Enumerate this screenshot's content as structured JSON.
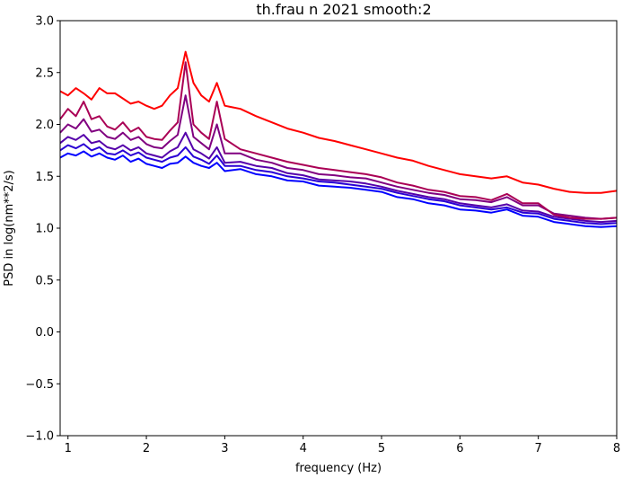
{
  "chart_data": {
    "type": "line",
    "title": "th.frau n 2021 smooth:2",
    "xlabel": "frequency (Hz)",
    "ylabel": "PSD in log(nm**2/s)",
    "xlim": [
      0.9,
      8
    ],
    "ylim": [
      -1.0,
      3.0
    ],
    "xticks": [
      1,
      2,
      3,
      4,
      5,
      6,
      7,
      8
    ],
    "xtick_labels": [
      "1",
      "2",
      "3",
      "4",
      "5",
      "6",
      "7",
      "8"
    ],
    "yticks": [
      -1.0,
      -0.5,
      0.0,
      0.5,
      1.0,
      1.5,
      2.0,
      2.5,
      3.0
    ],
    "ytick_labels": [
      "−1.0",
      "−0.5",
      "0.0",
      "0.5",
      "1.0",
      "1.5",
      "2.0",
      "2.5",
      "3.0"
    ],
    "grid": false,
    "legend": "none",
    "series": [
      {
        "color": "#0000ff",
        "x": [
          0.9,
          1.0,
          1.1,
          1.2,
          1.3,
          1.4,
          1.5,
          1.6,
          1.7,
          1.8,
          1.9,
          2.0,
          2.1,
          2.2,
          2.3,
          2.4,
          2.5,
          2.6,
          2.7,
          2.8,
          2.9,
          3.0,
          3.2,
          3.4,
          3.6,
          3.8,
          4.0,
          4.2,
          4.4,
          4.6,
          4.8,
          5.0,
          5.2,
          5.4,
          5.6,
          5.8,
          6.0,
          6.2,
          6.4,
          6.6,
          6.8,
          7.0,
          7.2,
          7.4,
          7.6,
          7.8,
          8.0
        ],
        "y": [
          1.68,
          1.72,
          1.7,
          1.74,
          1.69,
          1.72,
          1.68,
          1.66,
          1.7,
          1.64,
          1.67,
          1.62,
          1.6,
          1.58,
          1.62,
          1.63,
          1.69,
          1.63,
          1.6,
          1.58,
          1.63,
          1.55,
          1.57,
          1.52,
          1.5,
          1.46,
          1.45,
          1.41,
          1.4,
          1.39,
          1.37,
          1.35,
          1.3,
          1.28,
          1.24,
          1.22,
          1.18,
          1.17,
          1.15,
          1.18,
          1.12,
          1.11,
          1.06,
          1.04,
          1.02,
          1.01,
          1.02
        ]
      },
      {
        "color": "#2a00d4",
        "x": [
          0.9,
          1.0,
          1.1,
          1.2,
          1.3,
          1.4,
          1.5,
          1.6,
          1.7,
          1.8,
          1.9,
          2.0,
          2.1,
          2.2,
          2.3,
          2.4,
          2.5,
          2.6,
          2.7,
          2.8,
          2.9,
          3.0,
          3.2,
          3.4,
          3.6,
          3.8,
          4.0,
          4.2,
          4.4,
          4.6,
          4.8,
          5.0,
          5.2,
          5.4,
          5.6,
          5.8,
          6.0,
          6.2,
          6.4,
          6.6,
          6.8,
          7.0,
          7.2,
          7.4,
          7.6,
          7.8,
          8.0
        ],
        "y": [
          1.75,
          1.8,
          1.77,
          1.81,
          1.75,
          1.78,
          1.72,
          1.71,
          1.75,
          1.7,
          1.73,
          1.68,
          1.66,
          1.64,
          1.68,
          1.7,
          1.78,
          1.69,
          1.66,
          1.62,
          1.7,
          1.6,
          1.6,
          1.56,
          1.54,
          1.5,
          1.48,
          1.45,
          1.44,
          1.42,
          1.4,
          1.38,
          1.34,
          1.31,
          1.28,
          1.26,
          1.22,
          1.2,
          1.18,
          1.2,
          1.15,
          1.14,
          1.09,
          1.07,
          1.05,
          1.04,
          1.05
        ]
      },
      {
        "color": "#5500aa",
        "x": [
          0.9,
          1.0,
          1.1,
          1.2,
          1.3,
          1.4,
          1.5,
          1.6,
          1.7,
          1.8,
          1.9,
          2.0,
          2.1,
          2.2,
          2.3,
          2.4,
          2.5,
          2.6,
          2.7,
          2.8,
          2.9,
          3.0,
          3.2,
          3.4,
          3.6,
          3.8,
          4.0,
          4.2,
          4.4,
          4.6,
          4.8,
          5.0,
          5.2,
          5.4,
          5.6,
          5.8,
          6.0,
          6.2,
          6.4,
          6.6,
          6.8,
          7.0,
          7.2,
          7.4,
          7.6,
          7.8,
          8.0
        ],
        "y": [
          1.82,
          1.88,
          1.85,
          1.9,
          1.82,
          1.84,
          1.78,
          1.76,
          1.8,
          1.75,
          1.78,
          1.72,
          1.7,
          1.68,
          1.74,
          1.78,
          1.92,
          1.76,
          1.72,
          1.67,
          1.78,
          1.63,
          1.64,
          1.6,
          1.58,
          1.53,
          1.51,
          1.47,
          1.46,
          1.45,
          1.43,
          1.4,
          1.36,
          1.33,
          1.3,
          1.28,
          1.24,
          1.22,
          1.2,
          1.23,
          1.17,
          1.16,
          1.11,
          1.09,
          1.07,
          1.06,
          1.07
        ]
      },
      {
        "color": "#800080",
        "x": [
          0.9,
          1.0,
          1.1,
          1.2,
          1.3,
          1.4,
          1.5,
          1.6,
          1.7,
          1.8,
          1.9,
          2.0,
          2.1,
          2.2,
          2.3,
          2.4,
          2.5,
          2.6,
          2.7,
          2.8,
          2.9,
          3.0,
          3.2,
          3.4,
          3.6,
          3.8,
          4.0,
          4.2,
          4.4,
          4.6,
          4.8,
          5.0,
          5.2,
          5.4,
          5.6,
          5.8,
          6.0,
          6.2,
          6.4,
          6.6,
          6.8,
          7.0,
          7.2,
          7.4,
          7.6,
          7.8,
          8.0
        ],
        "y": [
          1.92,
          2.0,
          1.96,
          2.05,
          1.93,
          1.95,
          1.88,
          1.86,
          1.92,
          1.85,
          1.88,
          1.81,
          1.78,
          1.77,
          1.84,
          1.9,
          2.28,
          1.88,
          1.82,
          1.76,
          2.0,
          1.72,
          1.72,
          1.66,
          1.63,
          1.58,
          1.56,
          1.52,
          1.51,
          1.49,
          1.48,
          1.44,
          1.4,
          1.37,
          1.34,
          1.32,
          1.28,
          1.27,
          1.25,
          1.3,
          1.22,
          1.22,
          1.14,
          1.12,
          1.1,
          1.09,
          1.1
        ]
      },
      {
        "color": "#aa0055",
        "x": [
          0.9,
          1.0,
          1.1,
          1.2,
          1.3,
          1.4,
          1.5,
          1.6,
          1.7,
          1.8,
          1.9,
          2.0,
          2.1,
          2.2,
          2.3,
          2.4,
          2.5,
          2.6,
          2.7,
          2.8,
          2.9,
          3.0,
          3.2,
          3.4,
          3.6,
          3.8,
          4.0,
          4.2,
          4.4,
          4.6,
          4.8,
          5.0,
          5.2,
          5.4,
          5.6,
          5.8,
          6.0,
          6.2,
          6.4,
          6.6,
          6.8,
          7.0,
          7.2,
          7.4,
          7.6,
          7.8,
          8.0
        ],
        "y": [
          2.05,
          2.15,
          2.08,
          2.22,
          2.05,
          2.08,
          1.98,
          1.95,
          2.02,
          1.93,
          1.97,
          1.88,
          1.86,
          1.85,
          1.94,
          2.02,
          2.6,
          2.0,
          1.92,
          1.86,
          2.22,
          1.86,
          1.76,
          1.72,
          1.68,
          1.64,
          1.61,
          1.58,
          1.56,
          1.54,
          1.52,
          1.49,
          1.44,
          1.41,
          1.37,
          1.35,
          1.31,
          1.3,
          1.27,
          1.33,
          1.24,
          1.24,
          1.13,
          1.1,
          1.09,
          1.09,
          1.1
        ]
      },
      {
        "color": "#ff0000",
        "x": [
          0.9,
          1.0,
          1.1,
          1.2,
          1.3,
          1.4,
          1.5,
          1.6,
          1.7,
          1.8,
          1.9,
          2.0,
          2.1,
          2.2,
          2.3,
          2.4,
          2.5,
          2.6,
          2.7,
          2.8,
          2.9,
          3.0,
          3.2,
          3.4,
          3.6,
          3.8,
          4.0,
          4.2,
          4.4,
          4.6,
          4.8,
          5.0,
          5.2,
          5.4,
          5.6,
          5.8,
          6.0,
          6.2,
          6.4,
          6.6,
          6.8,
          7.0,
          7.2,
          7.4,
          7.6,
          7.8,
          8.0
        ],
        "y": [
          2.32,
          2.28,
          2.35,
          2.3,
          2.24,
          2.35,
          2.3,
          2.3,
          2.25,
          2.2,
          2.22,
          2.18,
          2.15,
          2.18,
          2.28,
          2.35,
          2.7,
          2.4,
          2.28,
          2.22,
          2.4,
          2.18,
          2.15,
          2.08,
          2.02,
          1.96,
          1.92,
          1.87,
          1.84,
          1.8,
          1.76,
          1.72,
          1.68,
          1.65,
          1.6,
          1.56,
          1.52,
          1.5,
          1.48,
          1.5,
          1.44,
          1.42,
          1.38,
          1.35,
          1.34,
          1.34,
          1.36
        ]
      }
    ]
  }
}
